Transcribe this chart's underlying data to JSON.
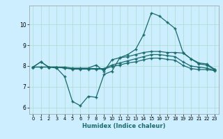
{
  "title": "",
  "xlabel": "Humidex (Indice chaleur)",
  "background_color": "#cceeff",
  "grid_color": "#aaddcc",
  "line_color": "#1a6b6b",
  "xlim": [
    -0.5,
    23.5
  ],
  "ylim": [
    5.7,
    10.9
  ],
  "yticks": [
    6,
    7,
    8,
    9,
    10
  ],
  "xticks": [
    0,
    1,
    2,
    3,
    4,
    5,
    6,
    7,
    8,
    9,
    10,
    11,
    12,
    13,
    14,
    15,
    16,
    17,
    18,
    19,
    20,
    21,
    22,
    23
  ],
  "series": [
    {
      "x": [
        0,
        1,
        2,
        3,
        4,
        5,
        6,
        7,
        8,
        9,
        10,
        11,
        12,
        13,
        14,
        15,
        16,
        17,
        18,
        19,
        20,
        21,
        22,
        23
      ],
      "y": [
        7.95,
        8.2,
        7.95,
        7.9,
        7.5,
        6.3,
        6.1,
        6.55,
        6.5,
        7.6,
        7.75,
        8.4,
        8.55,
        8.8,
        9.5,
        10.55,
        10.4,
        10.1,
        9.8,
        8.65,
        8.35,
        8.15,
        8.1,
        7.85
      ]
    },
    {
      "x": [
        0,
        1,
        2,
        3,
        4,
        5,
        6,
        7,
        8,
        9,
        10,
        11,
        12,
        13,
        14,
        15,
        16,
        17,
        18,
        19,
        20,
        21,
        22,
        23
      ],
      "y": [
        7.95,
        8.2,
        7.95,
        7.95,
        7.95,
        7.9,
        7.9,
        7.9,
        8.05,
        7.75,
        8.3,
        8.4,
        8.45,
        8.55,
        8.65,
        8.7,
        8.7,
        8.65,
        8.65,
        8.62,
        8.35,
        8.1,
        8.05,
        7.82
      ]
    },
    {
      "x": [
        0,
        1,
        2,
        3,
        4,
        5,
        6,
        7,
        8,
        9,
        10,
        11,
        12,
        13,
        14,
        15,
        16,
        17,
        18,
        19,
        20,
        21,
        22,
        23
      ],
      "y": [
        7.95,
        7.95,
        7.95,
        7.95,
        7.9,
        7.88,
        7.88,
        7.88,
        7.88,
        7.88,
        8.05,
        8.15,
        8.25,
        8.35,
        8.45,
        8.55,
        8.55,
        8.5,
        8.45,
        8.2,
        8.0,
        7.95,
        7.9,
        7.8
      ]
    },
    {
      "x": [
        0,
        1,
        2,
        3,
        4,
        5,
        6,
        7,
        8,
        9,
        10,
        11,
        12,
        13,
        14,
        15,
        16,
        17,
        18,
        19,
        20,
        21,
        22,
        23
      ],
      "y": [
        7.95,
        7.95,
        7.95,
        7.95,
        7.9,
        7.85,
        7.85,
        7.85,
        7.85,
        7.85,
        7.98,
        8.05,
        8.15,
        8.2,
        8.3,
        8.38,
        8.38,
        8.32,
        8.28,
        8.03,
        7.88,
        7.83,
        7.83,
        7.78
      ]
    }
  ]
}
